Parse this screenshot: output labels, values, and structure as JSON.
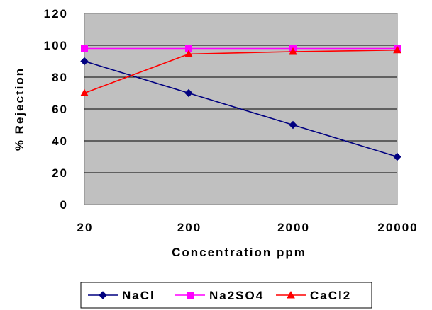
{
  "chart_data": {
    "type": "line",
    "title": "",
    "xlabel": "Concentration ppm",
    "ylabel": "% Rejection",
    "x_scale": "log",
    "categories": [
      "20",
      "200",
      "2000",
      "20000"
    ],
    "x": [
      20,
      200,
      2000,
      20000
    ],
    "ylim": [
      0,
      120
    ],
    "yticks": [
      "0",
      "20",
      "40",
      "60",
      "80",
      "100",
      "120"
    ],
    "grid": true,
    "legend_position": "bottom",
    "series": [
      {
        "name": "NaCl",
        "color": "#000080",
        "marker": "diamond",
        "values": [
          90,
          70,
          50,
          30
        ]
      },
      {
        "name": "Na2SO4",
        "color": "#FF00FF",
        "marker": "square",
        "values": [
          98,
          98,
          98,
          98
        ]
      },
      {
        "name": "CaCl2",
        "color": "#FF0000",
        "marker": "triangle",
        "values": [
          70,
          94.5,
          96,
          97
        ]
      }
    ],
    "plot_background": "#C0C0C0"
  }
}
